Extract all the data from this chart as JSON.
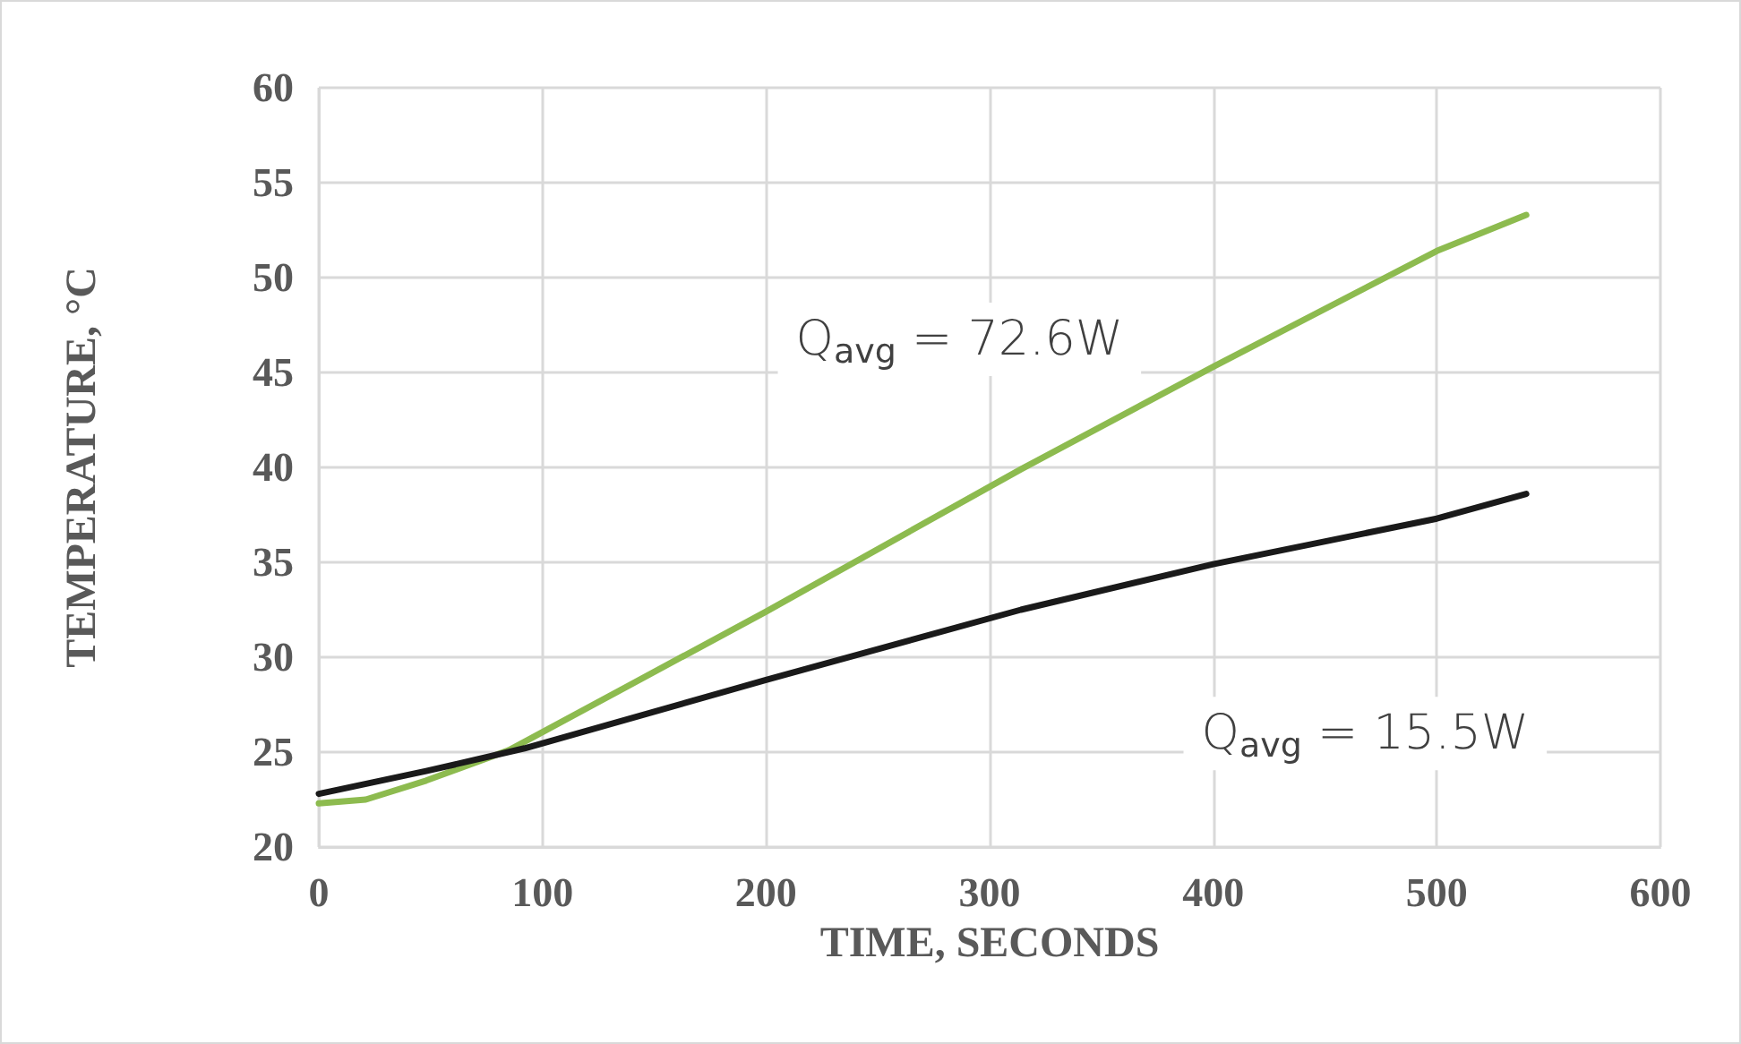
{
  "chart_data": {
    "type": "line",
    "xlabel": "TIME, SECONDS",
    "ylabel": "TEMPERATURE, °C",
    "xlim": [
      0,
      600
    ],
    "xticks": [
      0,
      100,
      200,
      300,
      400,
      500,
      600
    ],
    "ylim": [
      20,
      60
    ],
    "yticks": [
      20,
      25,
      30,
      35,
      40,
      45,
      50,
      55,
      60
    ],
    "grid": true,
    "legend": false,
    "marker": "none",
    "line_style": "solid",
    "series": [
      {
        "name": "Q$_{avg}$ = 72.6W",
        "color": "#8dbb4f",
        "x": [
          0,
          21,
          48,
          85,
          200,
          314,
          400,
          500,
          540
        ],
        "values": [
          22.3,
          22.5,
          23.5,
          25.1,
          32.4,
          39.9,
          45.3,
          51.4,
          53.3
        ]
      },
      {
        "name": "Q$_{avg}$ = 15.5W",
        "color": "#1a1a1a",
        "x": [
          0,
          48,
          92,
          200,
          314,
          400,
          500,
          540
        ],
        "values": [
          22.8,
          24.0,
          25.2,
          28.8,
          32.5,
          34.9,
          37.3,
          38.6
        ]
      }
    ]
  }
}
